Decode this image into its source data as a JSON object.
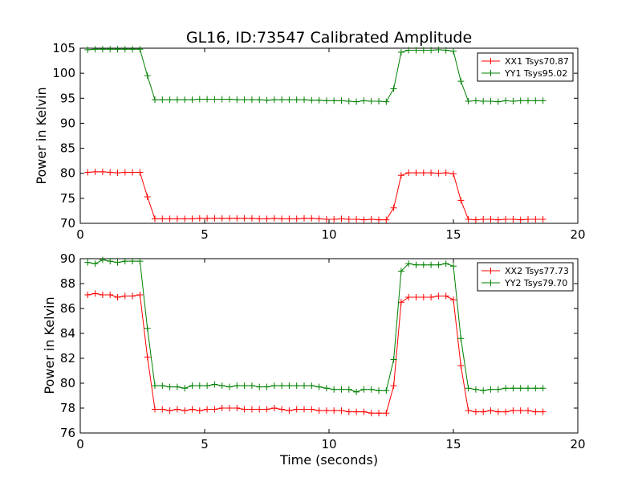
{
  "figure": {
    "title": "GL16, ID:73547 Calibrated Amplitude",
    "xlabel": "Time (seconds)"
  },
  "colors": {
    "XX": "#ff0000",
    "YY": "#008000"
  },
  "chart_data": [
    {
      "type": "line",
      "title": "GL16, ID:73547 Calibrated Amplitude",
      "xlabel": "",
      "ylabel": "Power in Kelvin",
      "xlim": [
        0,
        20
      ],
      "ylim": [
        70,
        105
      ],
      "xticks": [
        0,
        5,
        10,
        15,
        20
      ],
      "yticks": [
        70,
        75,
        80,
        85,
        90,
        95,
        100,
        105
      ],
      "grid": false,
      "legend": "top-right",
      "x": [
        0.3,
        0.6,
        0.9,
        1.2,
        1.5,
        1.8,
        2.1,
        2.4,
        2.7,
        3.0,
        3.3,
        3.6,
        3.9,
        4.2,
        4.5,
        4.8,
        5.1,
        5.4,
        5.7,
        6.0,
        6.3,
        6.6,
        6.9,
        7.2,
        7.5,
        7.8,
        8.1,
        8.4,
        8.7,
        9.0,
        9.3,
        9.6,
        9.9,
        10.2,
        10.5,
        10.8,
        11.1,
        11.4,
        11.7,
        12.0,
        12.3,
        12.6,
        12.9,
        13.2,
        13.5,
        13.8,
        14.1,
        14.4,
        14.7,
        15.0,
        15.3,
        15.6,
        15.9,
        16.2,
        16.5,
        16.8,
        17.1,
        17.4,
        17.7,
        18.0,
        18.3,
        18.6
      ],
      "series": [
        {
          "name": "XX1 Tsys70.87",
          "values": [
            80.2,
            80.3,
            80.3,
            80.2,
            80.1,
            80.2,
            80.2,
            80.2,
            75.3,
            70.9,
            70.9,
            70.9,
            70.9,
            70.9,
            70.9,
            71.0,
            71.0,
            71.0,
            71.0,
            71.0,
            71.0,
            71.0,
            71.0,
            70.9,
            70.9,
            71.0,
            70.9,
            70.9,
            70.9,
            71.0,
            71.0,
            70.9,
            70.8,
            70.8,
            70.9,
            70.8,
            70.8,
            70.7,
            70.8,
            70.7,
            70.7,
            73.1,
            79.6,
            80.1,
            80.1,
            80.1,
            80.1,
            80.0,
            80.1,
            79.9,
            74.6,
            70.8,
            70.7,
            70.8,
            70.8,
            70.7,
            70.8,
            70.8,
            70.7,
            70.8,
            70.8,
            70.8
          ]
        },
        {
          "name": "YY1 Tsys95.02",
          "values": [
            104.7,
            104.8,
            104.8,
            104.8,
            104.8,
            104.8,
            104.8,
            104.8,
            99.5,
            94.7,
            94.7,
            94.7,
            94.7,
            94.7,
            94.7,
            94.8,
            94.8,
            94.8,
            94.8,
            94.8,
            94.7,
            94.7,
            94.7,
            94.7,
            94.6,
            94.7,
            94.7,
            94.7,
            94.7,
            94.7,
            94.6,
            94.6,
            94.5,
            94.5,
            94.5,
            94.4,
            94.3,
            94.5,
            94.4,
            94.4,
            94.3,
            96.9,
            104.2,
            104.6,
            104.6,
            104.6,
            104.6,
            104.7,
            104.6,
            104.4,
            98.4,
            94.4,
            94.5,
            94.4,
            94.4,
            94.3,
            94.5,
            94.4,
            94.5,
            94.5,
            94.5,
            94.5
          ]
        }
      ]
    },
    {
      "type": "line",
      "title": "",
      "xlabel": "Time (seconds)",
      "ylabel": "Power in Kelvin",
      "xlim": [
        0,
        20
      ],
      "ylim": [
        76,
        90
      ],
      "xticks": [
        0,
        5,
        10,
        15,
        20
      ],
      "yticks": [
        76,
        78,
        80,
        82,
        84,
        86,
        88,
        90
      ],
      "grid": false,
      "legend": "top-right",
      "x": [
        0.3,
        0.6,
        0.9,
        1.2,
        1.5,
        1.8,
        2.1,
        2.4,
        2.7,
        3.0,
        3.3,
        3.6,
        3.9,
        4.2,
        4.5,
        4.8,
        5.1,
        5.4,
        5.7,
        6.0,
        6.3,
        6.6,
        6.9,
        7.2,
        7.5,
        7.8,
        8.1,
        8.4,
        8.7,
        9.0,
        9.3,
        9.6,
        9.9,
        10.2,
        10.5,
        10.8,
        11.1,
        11.4,
        11.7,
        12.0,
        12.3,
        12.6,
        12.9,
        13.2,
        13.5,
        13.8,
        14.1,
        14.4,
        14.7,
        15.0,
        15.3,
        15.6,
        15.9,
        16.2,
        16.5,
        16.8,
        17.1,
        17.4,
        17.7,
        18.0,
        18.3,
        18.6
      ],
      "series": [
        {
          "name": "XX2 Tsys77.73",
          "values": [
            87.1,
            87.2,
            87.1,
            87.1,
            86.9,
            87.0,
            87.0,
            87.1,
            82.1,
            77.9,
            77.9,
            77.8,
            77.9,
            77.8,
            77.9,
            77.8,
            77.9,
            77.9,
            78.0,
            78.0,
            78.0,
            77.9,
            77.9,
            77.9,
            77.9,
            78.0,
            77.9,
            77.8,
            77.9,
            77.9,
            77.9,
            77.8,
            77.8,
            77.8,
            77.8,
            77.7,
            77.7,
            77.7,
            77.6,
            77.6,
            77.6,
            79.8,
            86.5,
            86.9,
            86.9,
            86.9,
            86.9,
            87.0,
            87.0,
            86.7,
            81.4,
            77.8,
            77.7,
            77.7,
            77.8,
            77.7,
            77.7,
            77.8,
            77.8,
            77.8,
            77.7,
            77.7
          ]
        },
        {
          "name": "YY2 Tsys79.70",
          "values": [
            89.7,
            89.6,
            89.9,
            89.8,
            89.7,
            89.8,
            89.8,
            89.8,
            84.4,
            79.8,
            79.8,
            79.7,
            79.7,
            79.6,
            79.8,
            79.8,
            79.8,
            79.9,
            79.8,
            79.7,
            79.8,
            79.8,
            79.8,
            79.7,
            79.7,
            79.8,
            79.8,
            79.8,
            79.8,
            79.8,
            79.8,
            79.7,
            79.6,
            79.5,
            79.5,
            79.5,
            79.3,
            79.5,
            79.5,
            79.4,
            79.4,
            81.9,
            89.0,
            89.6,
            89.5,
            89.5,
            89.5,
            89.5,
            89.6,
            89.4,
            83.6,
            79.6,
            79.5,
            79.4,
            79.5,
            79.5,
            79.6,
            79.6,
            79.6,
            79.6,
            79.6,
            79.6
          ]
        }
      ]
    }
  ]
}
